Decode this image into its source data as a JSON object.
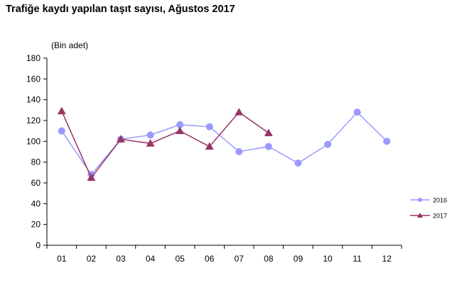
{
  "chart_data": {
    "type": "line",
    "title": "Trafiğe kaydı yapılan taşıt sayısı, Ağustos 2017",
    "ylabel": "(Bin adet)",
    "xlabel": "",
    "categories": [
      "01",
      "02",
      "03",
      "04",
      "05",
      "06",
      "07",
      "08",
      "09",
      "10",
      "11",
      "12"
    ],
    "ylim": [
      0,
      180
    ],
    "yticks": [
      0,
      20,
      40,
      60,
      80,
      100,
      120,
      140,
      160,
      180
    ],
    "grid": false,
    "legend_position": "right",
    "series": [
      {
        "name": "2016",
        "color": "#9999ff",
        "marker": "circle",
        "values": [
          110,
          68,
          102,
          106,
          116,
          114,
          90,
          95,
          79,
          97,
          128,
          100
        ]
      },
      {
        "name": "2017",
        "color": "#993366",
        "marker": "triangle",
        "values": [
          129,
          65,
          102,
          98,
          110,
          95,
          128,
          108,
          null,
          null,
          null,
          null
        ]
      }
    ]
  }
}
